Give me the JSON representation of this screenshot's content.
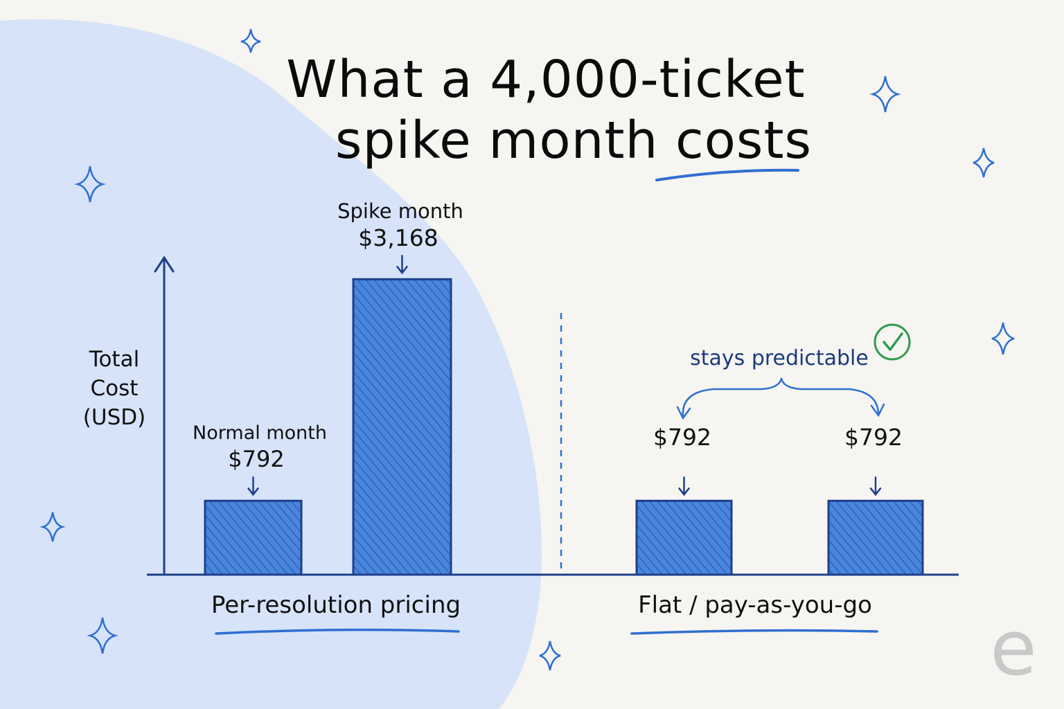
{
  "title": {
    "line1": "What a 4,000-ticket",
    "line2": "spike month costs"
  },
  "chart_data": {
    "type": "bar",
    "title": "What a 4,000-ticket spike month costs",
    "ylabel": [
      "Total",
      "Cost",
      "(USD)"
    ],
    "groups": [
      {
        "name": "Per-resolution pricing",
        "bars": [
          {
            "label": "Normal month",
            "value": 792,
            "value_label": "$792"
          },
          {
            "label": "Spike month",
            "value": 3168,
            "value_label": "$3,168"
          }
        ]
      },
      {
        "name": "Flat / pay-as-you-go",
        "bars": [
          {
            "label": "",
            "value": 792,
            "value_label": "$792"
          },
          {
            "label": "",
            "value": 792,
            "value_label": "$792"
          }
        ]
      }
    ],
    "annotation": "stays predictable",
    "ylim": [
      0,
      3400
    ],
    "colors": {
      "bar": "#3f7fd8",
      "bar_edge": "#1e3f8a",
      "axis": "#1e3f8a",
      "accent": "#2f6fd0",
      "check": "#2f9a4c",
      "blob": "#d7e4f8"
    }
  },
  "logo": {
    "letter": "e"
  }
}
